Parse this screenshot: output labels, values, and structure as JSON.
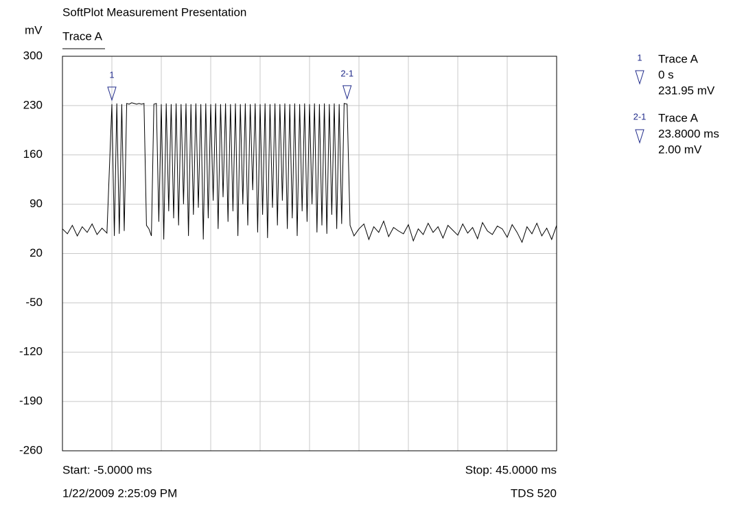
{
  "chart_data": {
    "type": "line",
    "title": "SoftPlot Measurement Presentation",
    "ylabel": "mV",
    "start_label": "Start: -5.0000 ms",
    "stop_label": "Stop: 45.0000 ms",
    "timestamp": "1/22/2009 2:25:09 PM",
    "instrument": "TDS 520",
    "xlim": [
      -5,
      45
    ],
    "xticks": [
      -5,
      0,
      5,
      10,
      15,
      20,
      25,
      30,
      35,
      40,
      45
    ],
    "ylim": [
      -260,
      300
    ],
    "yticks": [
      300,
      230,
      160,
      90,
      20,
      -50,
      -120,
      -190,
      -260
    ],
    "grid": true,
    "x": [
      -5,
      -4.5,
      -4,
      -3.5,
      -3,
      -2.5,
      -2,
      -1.5,
      -1,
      -0.5,
      0,
      0.25,
      0.5,
      0.75,
      1,
      1.25,
      1.5,
      1.75,
      2,
      2.25,
      2.5,
      2.75,
      3,
      3.25,
      3.5,
      3.75,
      4,
      4.25,
      4.5,
      4.75,
      5,
      5.25,
      5.5,
      5.75,
      6,
      6.25,
      6.5,
      6.75,
      7,
      7.25,
      7.5,
      7.75,
      8,
      8.25,
      8.5,
      8.75,
      9,
      9.25,
      9.5,
      9.75,
      10,
      10.25,
      10.5,
      10.75,
      11,
      11.25,
      11.5,
      11.75,
      12,
      12.25,
      12.5,
      12.75,
      13,
      13.25,
      13.5,
      13.75,
      14,
      14.25,
      14.5,
      14.75,
      15,
      15.25,
      15.5,
      15.75,
      16,
      16.25,
      16.5,
      16.75,
      17,
      17.25,
      17.5,
      17.75,
      18,
      18.25,
      18.5,
      18.75,
      19,
      19.25,
      19.5,
      19.75,
      20,
      20.25,
      20.5,
      20.75,
      21,
      21.25,
      21.5,
      21.75,
      22,
      22.25,
      22.5,
      22.75,
      23,
      23.25,
      23.5,
      23.8,
      24.1,
      24.5,
      25,
      25.5,
      26,
      26.5,
      27,
      27.5,
      28,
      28.5,
      29,
      29.5,
      30,
      30.5,
      31,
      31.5,
      32,
      32.5,
      33,
      33.5,
      34,
      34.5,
      35,
      35.5,
      36,
      36.5,
      37,
      37.5,
      38,
      38.5,
      39,
      39.5,
      40,
      40.5,
      41,
      41.5,
      42,
      42.5,
      43,
      43.5,
      44,
      44.5,
      45
    ],
    "series": [
      {
        "name": "Trace A",
        "color": "#000000",
        "values": [
          55,
          48,
          60,
          45,
          58,
          50,
          62,
          47,
          56,
          49,
          232,
          45,
          233,
          48,
          232,
          52,
          233,
          232,
          234,
          233,
          232,
          233,
          232,
          233,
          60,
          55,
          45,
          232,
          233,
          65,
          232,
          40,
          233,
          80,
          232,
          70,
          233,
          60,
          232,
          90,
          233,
          45,
          232,
          75,
          233,
          85,
          232,
          40,
          233,
          70,
          232,
          95,
          233,
          55,
          232,
          100,
          233,
          65,
          232,
          80,
          233,
          45,
          232,
          90,
          233,
          60,
          232,
          110,
          233,
          50,
          232,
          75,
          233,
          42,
          232,
          85,
          233,
          60,
          232,
          95,
          233,
          55,
          232,
          70,
          233,
          45,
          232,
          80,
          233,
          65,
          232,
          90,
          233,
          50,
          232,
          60,
          233,
          48,
          232,
          75,
          233,
          55,
          232,
          62,
          233,
          232,
          60,
          45,
          55,
          62,
          40,
          58,
          50,
          66,
          44,
          57,
          52,
          48,
          61,
          38,
          55,
          47,
          63,
          50,
          58,
          42,
          60,
          53,
          46,
          62,
          49,
          57,
          41,
          64,
          52,
          47,
          59,
          55,
          43,
          61,
          50,
          36,
          58,
          48,
          63,
          45,
          56,
          40,
          60
        ]
      }
    ],
    "markers": [
      {
        "label": "1",
        "x": 0,
        "y": 231.95,
        "x_readout": "0 s",
        "y_readout": "231.95 mV"
      },
      {
        "label": "2-1",
        "x": 23.8,
        "y": 233.95,
        "x_readout": "23.8000 ms",
        "y_readout": "2.00 mV"
      }
    ]
  }
}
